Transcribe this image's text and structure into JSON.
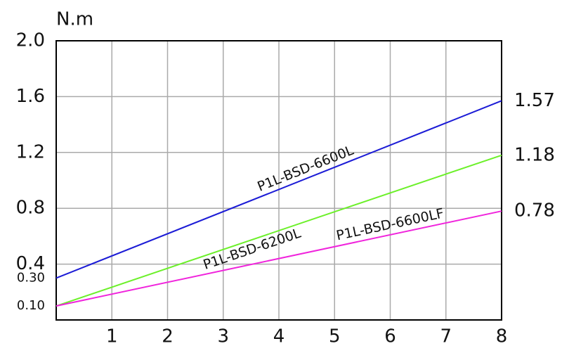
{
  "chart_data": {
    "type": "line",
    "y_label": "N.m",
    "x": [
      0,
      8
    ],
    "series": [
      {
        "name": "P1L-BSD-6600L",
        "color": "#1c1cd6",
        "values": [
          0.3,
          1.57
        ],
        "value_labels": [
          null,
          "1.57"
        ]
      },
      {
        "name": "P1L-BSD-6200L",
        "color": "#6cf02a",
        "values": [
          0.1,
          1.18
        ],
        "value_labels": [
          null,
          "1.18"
        ]
      },
      {
        "name": "P1L-BSD-6600LF",
        "color": "#f024dc",
        "values": [
          0.1,
          0.78
        ],
        "value_labels": [
          null,
          "0.78"
        ]
      }
    ],
    "xlim": [
      0,
      8
    ],
    "xticks": [
      1,
      2,
      3,
      4,
      5,
      6,
      7,
      8
    ],
    "ylim": [
      0,
      2
    ],
    "yticks": [
      0.4,
      0.8,
      1.2,
      1.6,
      {
        "value": 2,
        "label": "2.0"
      }
    ],
    "minor_yticks": [
      {
        "value": 0.3,
        "label": "0.30"
      },
      {
        "value": 0.1,
        "label": "0.10"
      }
    ],
    "grid": true
  }
}
